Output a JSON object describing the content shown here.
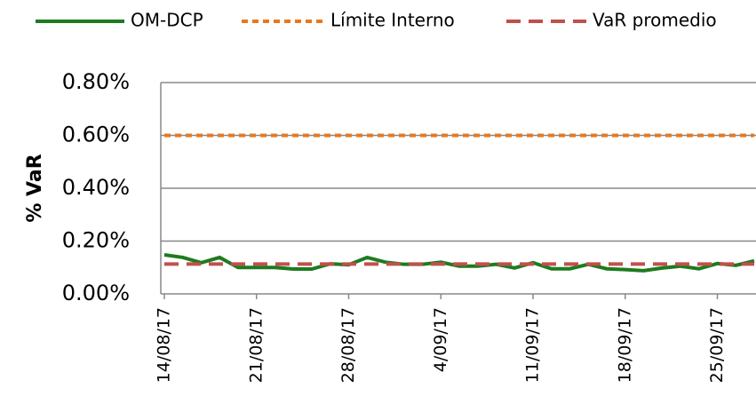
{
  "chart_data": {
    "type": "line",
    "y_label": "% VaR",
    "categories": [
      "14/08/17",
      null,
      null,
      null,
      null,
      "21/08/17",
      null,
      null,
      null,
      null,
      "28/08/17",
      null,
      null,
      null,
      null,
      "4/09/17",
      null,
      null,
      null,
      null,
      "11/09/17",
      null,
      null,
      null,
      null,
      "18/09/17",
      null,
      null,
      null,
      null,
      "25/09/17",
      null,
      null
    ],
    "series": [
      {
        "name": "OM-DCP",
        "color": "#1e7b1e",
        "style": "solid",
        "values": [
          0.148,
          0.138,
          0.118,
          0.138,
          0.1,
          0.1,
          0.1,
          0.094,
          0.094,
          0.114,
          0.11,
          0.138,
          0.12,
          0.112,
          0.112,
          0.12,
          0.105,
          0.105,
          0.112,
          0.098,
          0.118,
          0.095,
          0.095,
          0.112,
          0.095,
          0.092,
          0.088,
          0.098,
          0.105,
          0.095,
          0.115,
          0.108,
          0.125
        ]
      },
      {
        "name": "Límite Interno",
        "color": "#e8781e",
        "style": "dotted",
        "values": [
          0.6,
          0.6,
          0.6,
          0.6,
          0.6,
          0.6,
          0.6,
          0.6,
          0.6,
          0.6,
          0.6,
          0.6,
          0.6,
          0.6,
          0.6,
          0.6,
          0.6,
          0.6,
          0.6,
          0.6,
          0.6,
          0.6,
          0.6,
          0.6,
          0.6,
          0.6,
          0.6,
          0.6,
          0.6,
          0.6,
          0.6,
          0.6,
          0.6
        ]
      },
      {
        "name": "VaR promedio",
        "color": "#c0504d",
        "style": "dashed",
        "values": [
          0.113,
          0.113,
          0.113,
          0.113,
          0.113,
          0.113,
          0.113,
          0.113,
          0.113,
          0.113,
          0.113,
          0.113,
          0.113,
          0.113,
          0.113,
          0.113,
          0.113,
          0.113,
          0.113,
          0.113,
          0.113,
          0.113,
          0.113,
          0.113,
          0.113,
          0.113,
          0.113,
          0.113,
          0.113,
          0.113,
          0.113,
          0.113,
          0.113
        ]
      }
    ],
    "ylim": [
      0,
      0.8
    ],
    "yticks": [
      {
        "value": 0,
        "label": "0.00%"
      },
      {
        "value": 0.2,
        "label": "0.20%"
      },
      {
        "value": 0.4,
        "label": "0.40%"
      },
      {
        "value": 0.6,
        "label": "0.60%"
      },
      {
        "value": 0.8,
        "label": "0.80%"
      }
    ],
    "grid": true,
    "legend": "top"
  }
}
